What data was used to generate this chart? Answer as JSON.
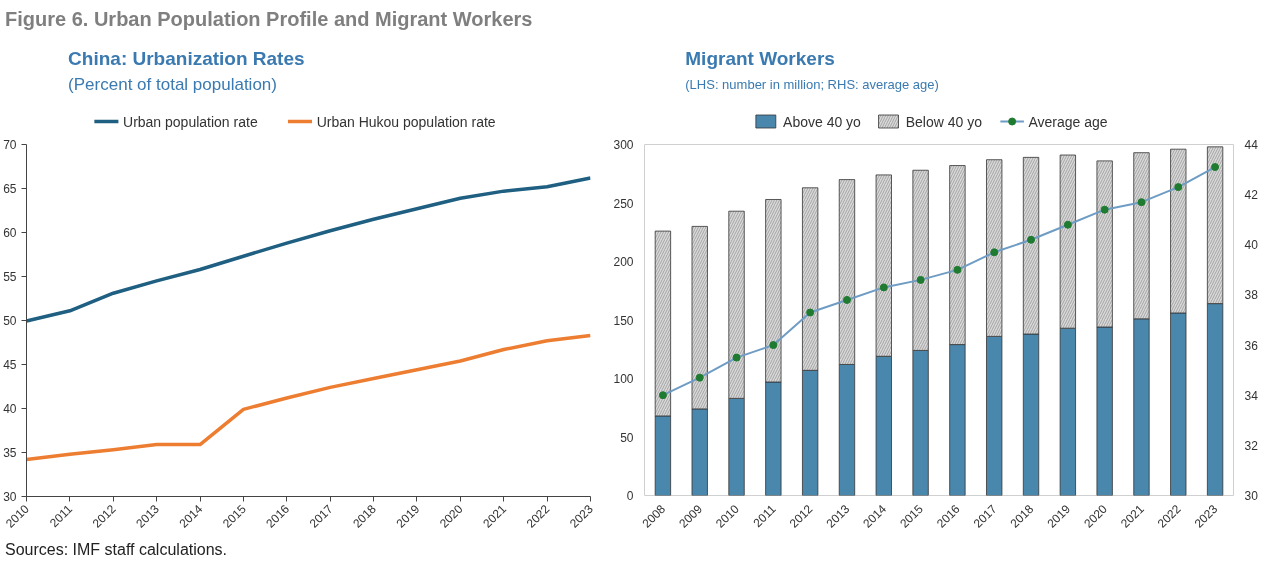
{
  "chart_data": [
    {
      "type": "line",
      "title": "China: Urbanization Rates",
      "subtitle": "(Percent of total population)",
      "annotations": [
        "Figure 6. Urban Population Profile and Migrant Workers",
        "Sources: IMF staff calculations."
      ],
      "categories": [
        "2010",
        "2011",
        "2012",
        "2013",
        "2014",
        "2015",
        "2016",
        "2017",
        "2018",
        "2019",
        "2020",
        "2021",
        "2022",
        "2023"
      ],
      "series": [
        {
          "name": "Urban population rate",
          "color": "#1f5f82",
          "values": [
            49.95,
            51.1,
            53.1,
            54.5,
            55.8,
            57.3,
            58.8,
            60.2,
            61.5,
            62.7,
            63.9,
            64.7,
            65.2,
            66.2
          ]
        },
        {
          "name": "Urban Hukou population rate",
          "color": "#ed7d31",
          "values": [
            34.2,
            34.8,
            35.3,
            35.9,
            35.9,
            39.9,
            41.2,
            42.4,
            43.4,
            44.4,
            45.4,
            46.7,
            47.7,
            48.3
          ]
        }
      ],
      "ylim": [
        30,
        70
      ],
      "yticks": [
        30,
        35,
        40,
        45,
        50,
        55,
        60,
        65,
        70
      ],
      "legend": "top"
    },
    {
      "type": "bar",
      "stacked": true,
      "title": "Migrant Workers",
      "subtitle": "(LHS: number in million; RHS: average age)",
      "categories": [
        "2008",
        "2009",
        "2010",
        "2011",
        "2012",
        "2013",
        "2014",
        "2015",
        "2016",
        "2017",
        "2018",
        "2019",
        "2020",
        "2021",
        "2022",
        "2023"
      ],
      "series": [
        {
          "name": "Above 40 yo",
          "color": "#4a87ad",
          "values": [
            68,
            74,
            83,
            97,
            107,
            112,
            119,
            124,
            129,
            136,
            138,
            143,
            144,
            151,
            156,
            164
          ]
        },
        {
          "name": "Below 40 yo",
          "color": "#d9d9d9",
          "values": [
            158,
            156,
            160,
            156,
            156,
            158,
            155,
            154,
            153,
            151,
            151,
            148,
            142,
            142,
            140,
            134
          ]
        },
        {
          "name": "Average age",
          "type": "line",
          "axis": "y2",
          "color": "#6f9cc4",
          "values": [
            34.0,
            34.7,
            35.5,
            36.0,
            37.3,
            37.8,
            38.3,
            38.6,
            39.0,
            39.7,
            40.2,
            40.8,
            41.4,
            41.7,
            42.3,
            43.1
          ]
        }
      ],
      "marker": "circle",
      "ylim": [
        0,
        300
      ],
      "yticks": [
        0,
        50,
        100,
        150,
        200,
        250,
        300
      ],
      "y2lim": [
        30,
        44
      ],
      "y2ticks": [
        30,
        32,
        34,
        36,
        38,
        40,
        42,
        44
      ],
      "legend": "top"
    }
  ]
}
